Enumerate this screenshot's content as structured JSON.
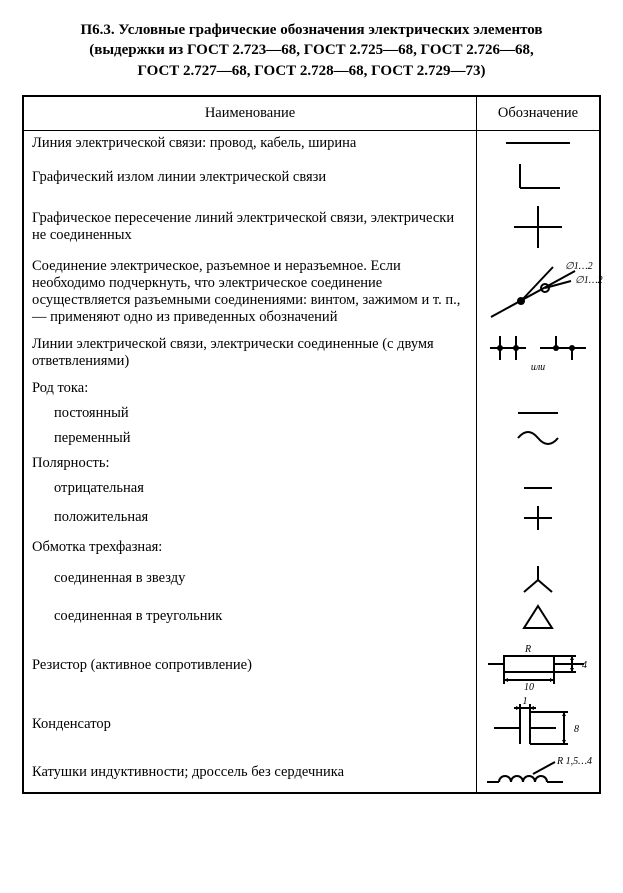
{
  "title_lines": [
    "П6.3. Условные графические обозначения электрических элементов",
    "(выдержки из ГОСТ 2.723—68, ГОСТ 2.725—68, ГОСТ 2.726—68,",
    "ГОСТ 2.727—68, ГОСТ 2.728—68, ГОСТ 2.729—73)"
  ],
  "columns": {
    "name": "Наименование",
    "symbol": "Обозначение"
  },
  "rows": [
    {
      "label": "Линия электрической связи: провод, кабель, ширина",
      "symbol": "line"
    },
    {
      "label": "Графический излом линии электрической связи",
      "symbol": "corner"
    },
    {
      "label": "Графическое пересечение линий электрической связи, электрически не соединенных",
      "symbol": "cross"
    },
    {
      "label": "Соединение электрическое, разъемное и неразъемное. Если необходимо подчеркнуть, что электрическое соединение осуществляется разъемными соединениями: винтом, зажимом и т. п., — применяют одно из приведенных обозначений",
      "symbol": "conn",
      "notes": {
        "a": "∅1…2",
        "b": "∅1…2"
      }
    },
    {
      "label": "Линии электрической связи, электрически соединенные (с двумя ответвлениями)",
      "symbol": "branch",
      "or": "или"
    },
    {
      "label": "Род тока:",
      "symbol": "none"
    },
    {
      "label": "постоянный",
      "indent": true,
      "symbol": "dc"
    },
    {
      "label": "переменный",
      "indent": true,
      "symbol": "ac"
    },
    {
      "label": "Полярность:",
      "symbol": "none"
    },
    {
      "label": "отрицательная",
      "indent": true,
      "symbol": "minus"
    },
    {
      "label": "положительная",
      "indent": true,
      "symbol": "plus"
    },
    {
      "label": "Обмотка трехфазная:",
      "symbol": "none"
    },
    {
      "label": "соединенная в звезду",
      "indent": true,
      "symbol": "wye"
    },
    {
      "label": "соединенная в треугольник",
      "indent": true,
      "symbol": "delta"
    },
    {
      "label": "Резистор (активное сопротивление)",
      "symbol": "resistor",
      "dims": {
        "R": "R",
        "w": "10",
        "h": "4"
      }
    },
    {
      "label": "Конденсатор",
      "symbol": "capacitor",
      "dims": {
        "w": "1",
        "h": "8"
      }
    },
    {
      "label": "Катушки индуктивности; дроссель без сердечника",
      "symbol": "inductor",
      "dims": {
        "r": "R 1,5…4"
      }
    }
  ],
  "style": {
    "stroke": "#000",
    "stroke_w": 2,
    "font_main": 14.5,
    "font_title": 15,
    "font_dim": 10,
    "sym_col_width": 110
  }
}
